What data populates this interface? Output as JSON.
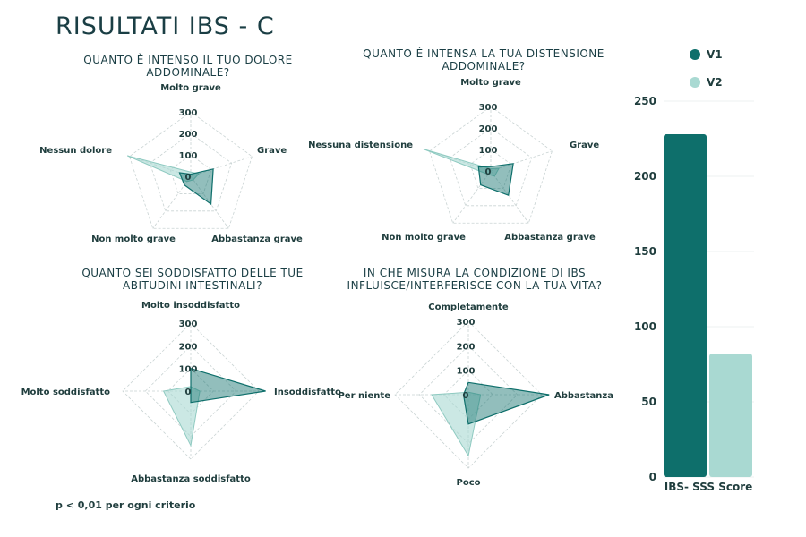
{
  "page": {
    "title": "RISULTATI IBS - C",
    "footnote": "p < 0,01 per ogni criterio"
  },
  "colors": {
    "v1": "#0e6f6b",
    "v2": "#a9d9d2",
    "grid": "#c9d3d3"
  },
  "chart_data": [
    {
      "type": "radar",
      "title": "QUANTO È INTENSO IL TUO DOLORE ADDOMINALE?",
      "title_lines": [
        "QUANTO È INTENSO IL TUO DOLORE",
        "ADDOMINALE?"
      ],
      "axes": [
        "Molto grave",
        "Grave",
        "Abbastanza grave",
        "Non molto grave",
        "Nessun dolore"
      ],
      "ticks": [
        0,
        100,
        200,
        300
      ],
      "rmax": 300,
      "series": [
        {
          "name": "V1",
          "values": [
            10,
            110,
            160,
            50,
            55
          ]
        },
        {
          "name": "V2",
          "values": [
            20,
            40,
            20,
            30,
            310
          ]
        }
      ]
    },
    {
      "type": "radar",
      "title": "QUANTO È INTENSA LA TUA DISTENSIONE ADDOMINALE?",
      "title_lines": [
        "QUANTO È INTENSA LA TUA DISTENSIONE",
        "ADDOMINALE?"
      ],
      "axes": [
        "Molto grave",
        "Grave",
        "Abbastanza grave",
        "Non molto grave",
        "Nessuna distensione"
      ],
      "ticks": [
        0,
        100,
        200,
        300
      ],
      "rmax": 300,
      "series": [
        {
          "name": "V1",
          "values": [
            20,
            110,
            140,
            80,
            60
          ]
        },
        {
          "name": "V2",
          "values": [
            10,
            40,
            30,
            20,
            330
          ]
        }
      ]
    },
    {
      "type": "radar",
      "title": "QUANTO SEI SODDISFATTO DELLE TUE ABITUDINI INTESTINALI?",
      "title_lines": [
        "QUANTO SEI SODDISFATTO DELLE TUE",
        "ABITUDINI INTESTINALI?"
      ],
      "axes": [
        "Molto insoddisfatto",
        "Insoddisfatto",
        "Abbastanza soddisfatto",
        "Molto soddisfatto"
      ],
      "ticks": [
        0,
        100,
        200,
        300
      ],
      "rmax": 300,
      "series": [
        {
          "name": "V1",
          "values": [
            100,
            330,
            50,
            0
          ]
        },
        {
          "name": "V2",
          "values": [
            20,
            40,
            240,
            120
          ]
        }
      ]
    },
    {
      "type": "radar",
      "title": "IN CHE MISURA LA CONDIZIONE DI IBS INFLUISCE/INTERFERISCE CON LA TUA VITA?",
      "title_lines": [
        "IN CHE MISURA LA CONDIZIONE DI IBS",
        "INFLUISCE/INTERFERISCE CON LA TUA VITA?"
      ],
      "axes": [
        "Completamente",
        "Abbastanza",
        "Poco",
        "Per niente"
      ],
      "ticks": [
        0,
        100,
        200,
        300
      ],
      "rmax": 300,
      "series": [
        {
          "name": "V1",
          "values": [
            50,
            330,
            120,
            20
          ]
        },
        {
          "name": "V2",
          "values": [
            10,
            50,
            250,
            150
          ]
        }
      ]
    },
    {
      "type": "bar",
      "categories": [
        "IBS- SSS Score"
      ],
      "series": [
        {
          "name": "V1",
          "values": [
            228
          ]
        },
        {
          "name": "V2",
          "values": [
            82
          ]
        }
      ],
      "yticks": [
        0,
        50,
        100,
        150,
        200,
        250
      ],
      "ylim": [
        0,
        250
      ],
      "legend": [
        "V1",
        "V2"
      ],
      "legend_placement": "top"
    }
  ]
}
